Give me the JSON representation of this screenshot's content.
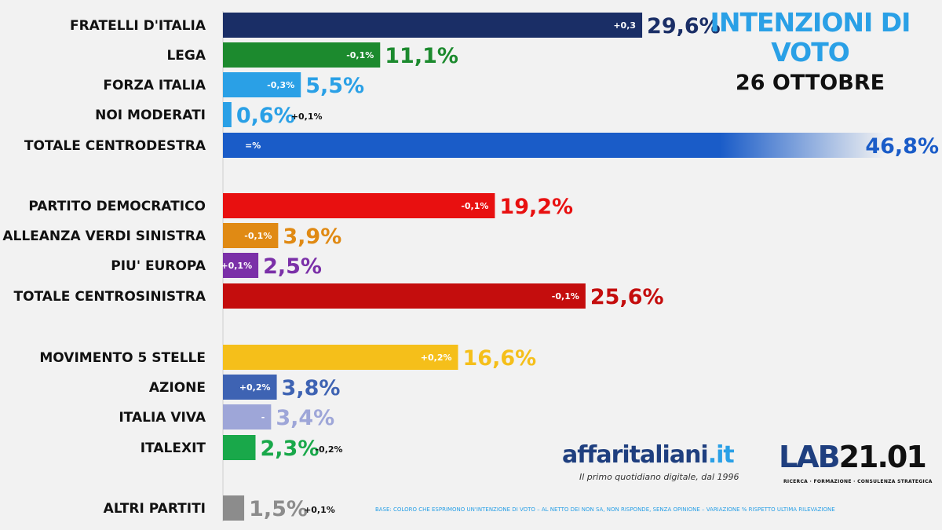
{
  "header": {
    "title_line1": "INTENZIONI DI",
    "title_line2": "VOTO",
    "date": "26 OTTOBRE"
  },
  "logos": {
    "affaritaliani_name": "affaritaliani",
    "affaritaliani_suffix": ".it",
    "affaritaliani_tagline": "Il primo quotidiano digitale, dal 1996",
    "lab_name": "LAB",
    "lab_number": "21.01",
    "lab_subtitle": "RICERCA · FORMAZIONE · CONSULENZA STRATEGICA"
  },
  "footnote": "BASE: COLORO CHE ESPRIMONO UN'INTENZIONE DI VOTO – AL NETTO DEI NON SA, NON RISPONDE, SENZA OPINIONE – VARIAZIONE % RISPETTO ULTIMA RILEVAZIONE",
  "chart_data": {
    "type": "bar",
    "orientation": "horizontal",
    "title": "INTENZIONI DI VOTO 26 OTTOBRE",
    "unit": "%",
    "xlim": [
      0,
      47
    ],
    "categories": [
      "FRATELLI D'ITALIA",
      "LEGA",
      "FORZA ITALIA",
      "NOI MODERATI",
      "TOTALE CENTRODESTRA",
      "PARTITO DEMOCRATICO",
      "ALLEANZA VERDI SINISTRA",
      "PIU' EUROPA",
      "TOTALE CENTROSINISTRA",
      "MOVIMENTO 5 STELLE",
      "AZIONE",
      "ITALIA VIVA",
      "ITALEXIT",
      "ALTRI PARTITI"
    ],
    "values": [
      29.6,
      11.1,
      5.5,
      0.6,
      46.8,
      19.2,
      3.9,
      2.5,
      25.6,
      16.6,
      3.8,
      3.4,
      2.3,
      1.5
    ],
    "value_labels": [
      "29,6%",
      "11,1%",
      "5,5%",
      "0,6%",
      "46,8%",
      "19,2%",
      "3,9%",
      "2,5%",
      "25,6%",
      "16,6%",
      "3,8%",
      "3,4%",
      "2,3%",
      "1,5%"
    ],
    "changes": [
      "+0,3",
      "-0,1%",
      "-0,3%",
      "+0,1%",
      "=%",
      "-0,1%",
      "-0,1%",
      "+0,1%",
      "-0,1%",
      "+0,2%",
      "+0,2%",
      "-",
      "-0,2%",
      "+0,1%"
    ],
    "colors": [
      "#1a2e66",
      "#1c8a2e",
      "#2aa0e6",
      "#2aa0e6",
      "#1a5cc8",
      "#e81010",
      "#e08a14",
      "#7b30a8",
      "#c40d0d",
      "#f5bf1a",
      "#3e63b3",
      "#9ea6d8",
      "#19a84a",
      "#8c8c8c"
    ],
    "gradient_fade": [
      false,
      false,
      false,
      false,
      true,
      false,
      false,
      false,
      false,
      false,
      false,
      false,
      false,
      false
    ]
  }
}
